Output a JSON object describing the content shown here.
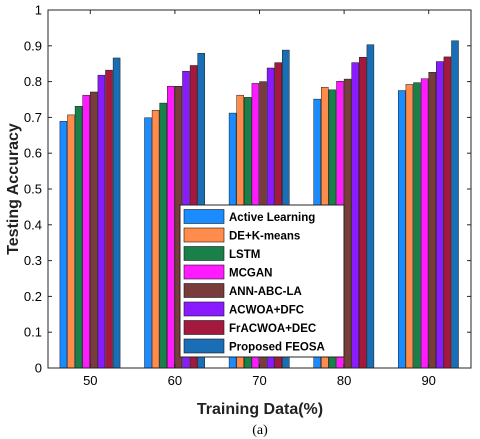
{
  "chart_data": {
    "type": "bar",
    "xlabel": "Training Data(%)",
    "ylabel": "Testing Accuracy",
    "caption": "(a)",
    "categories": [
      "50",
      "60",
      "70",
      "80",
      "90"
    ],
    "ylim": [
      0,
      1
    ],
    "yticks": [
      "0",
      "0.1",
      "0.2",
      "0.3",
      "0.4",
      "0.5",
      "0.6",
      "0.7",
      "0.8",
      "0.9",
      "1"
    ],
    "grid": false,
    "legend_position": "lower-center",
    "series": [
      {
        "name": "Active Learning",
        "color": "#1a8cff",
        "values": [
          0.689,
          0.699,
          0.712,
          0.751,
          0.775
        ]
      },
      {
        "name": "DE+K-means",
        "color": "#ff8c4a",
        "values": [
          0.707,
          0.72,
          0.762,
          0.784,
          0.792
        ]
      },
      {
        "name": "LSTM",
        "color": "#1a8049",
        "values": [
          0.731,
          0.74,
          0.756,
          0.777,
          0.797
        ]
      },
      {
        "name": "MCGAN",
        "color": "#ff1aff",
        "values": [
          0.762,
          0.787,
          0.795,
          0.801,
          0.808
        ]
      },
      {
        "name": "ANN-ABC-LA",
        "color": "#7a3b3b",
        "values": [
          0.771,
          0.787,
          0.8,
          0.807,
          0.826
        ]
      },
      {
        "name": "ACWOA+DFC",
        "color": "#8a1aff",
        "values": [
          0.818,
          0.829,
          0.838,
          0.853,
          0.856
        ]
      },
      {
        "name": "FrACWOA+DEC",
        "color": "#a5193f",
        "values": [
          0.832,
          0.845,
          0.853,
          0.868,
          0.869
        ]
      },
      {
        "name": "Proposed FEOSA",
        "color": "#1a6eb5",
        "values": [
          0.866,
          0.879,
          0.888,
          0.903,
          0.914
        ]
      }
    ]
  }
}
